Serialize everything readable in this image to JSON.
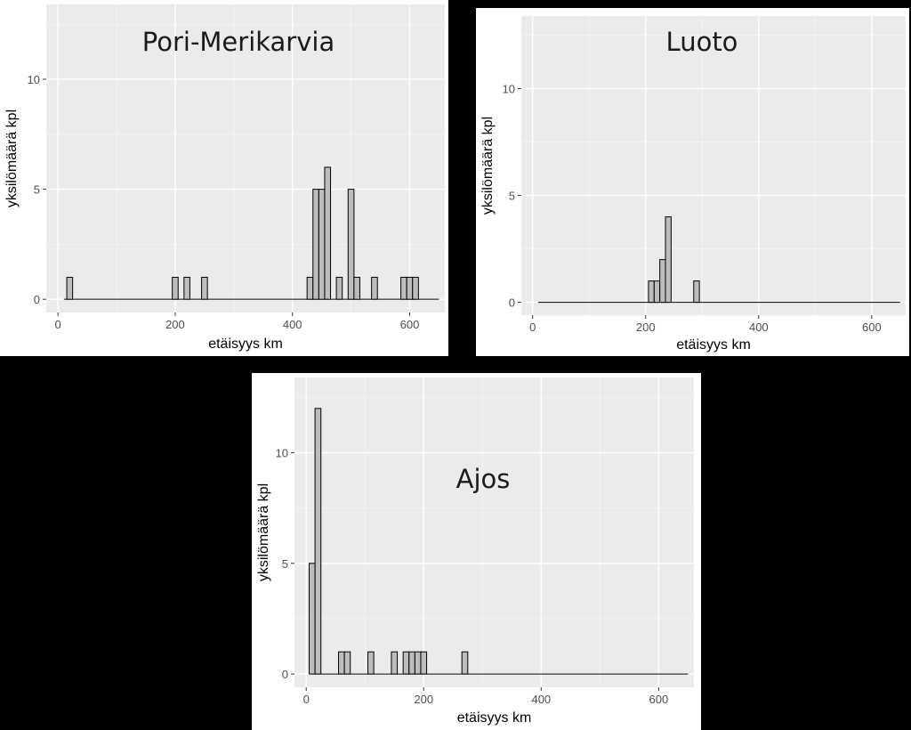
{
  "chart_data": [
    {
      "type": "bar",
      "annotation": "Pori-Merikarvia",
      "xlabel": "etäisyys km",
      "ylabel": "yksilömäärä kpl",
      "x_ticks": [
        "0",
        "200",
        "400",
        "600"
      ],
      "y_ticks": [
        "0",
        "5",
        "10"
      ],
      "xlim": [
        -20,
        660
      ],
      "ylim": [
        -0.6,
        13.4
      ],
      "grid": true,
      "bin_width": 10,
      "baseline": [
        10,
        650
      ],
      "x": [
        20,
        200,
        220,
        250,
        430,
        440,
        450,
        460,
        480,
        500,
        510,
        540,
        590,
        600,
        610
      ],
      "values": [
        1,
        1,
        1,
        1,
        1,
        5,
        5,
        6,
        1,
        5,
        1,
        1,
        1,
        1,
        1
      ]
    },
    {
      "type": "bar",
      "annotation": "Luoto",
      "xlabel": "etäisyys km",
      "ylabel": "yksilömäärä kpl",
      "x_ticks": [
        "0",
        "200",
        "400",
        "600"
      ],
      "y_ticks": [
        "0",
        "5",
        "10"
      ],
      "xlim": [
        -20,
        660
      ],
      "ylim": [
        -0.6,
        13.4
      ],
      "grid": true,
      "bin_width": 10,
      "baseline": [
        10,
        650
      ],
      "x": [
        210,
        220,
        230,
        240,
        290
      ],
      "values": [
        1,
        1,
        2,
        4,
        1
      ]
    },
    {
      "type": "bar",
      "annotation": "Ajos",
      "xlabel": "etäisyys km",
      "ylabel": "yksilömäärä kpl",
      "x_ticks": [
        "0",
        "200",
        "400",
        "600"
      ],
      "y_ticks": [
        "0",
        "5",
        "10"
      ],
      "xlim": [
        -20,
        660
      ],
      "ylim": [
        -0.6,
        13.4
      ],
      "grid": true,
      "bin_width": 10,
      "baseline": [
        10,
        650
      ],
      "x": [
        10,
        20,
        60,
        70,
        110,
        150,
        170,
        180,
        190,
        200,
        270
      ],
      "values": [
        5,
        12,
        1,
        1,
        1,
        1,
        1,
        1,
        1,
        1,
        1
      ]
    }
  ]
}
